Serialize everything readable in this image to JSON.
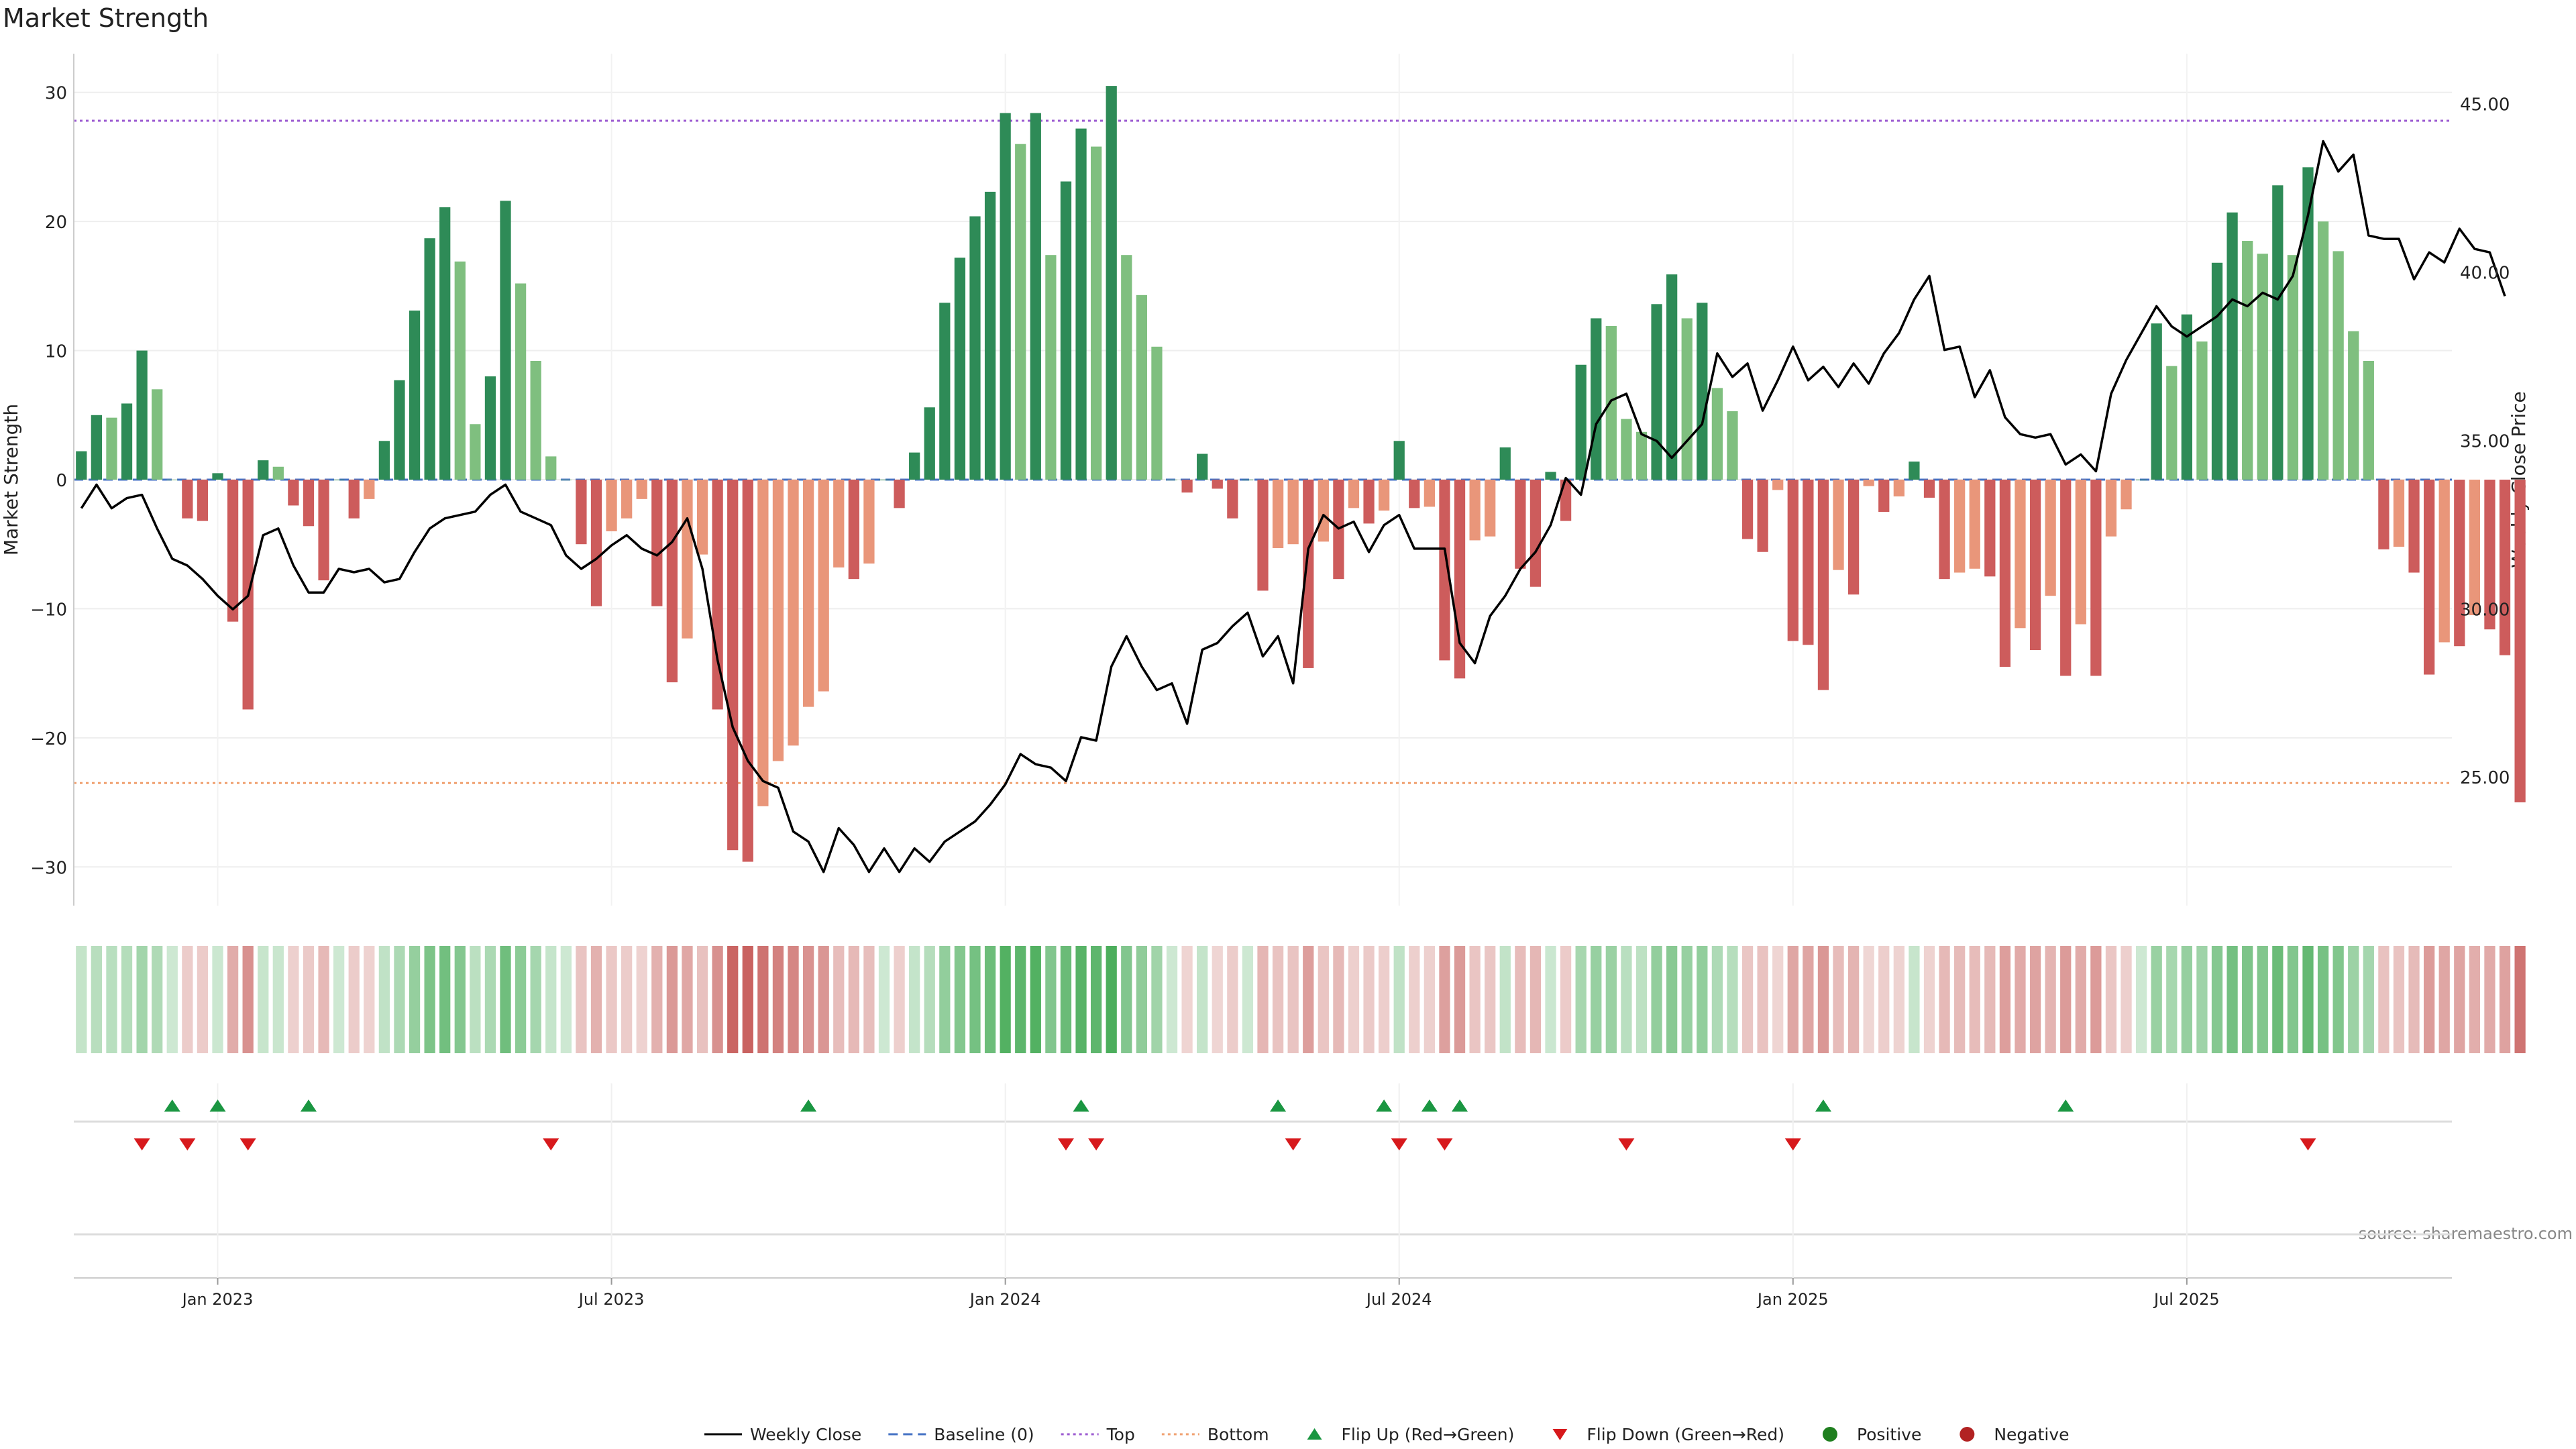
{
  "chart_data": {
    "type": "bar",
    "title": "Market Strength",
    "ylabel": "Market Strength",
    "y2label": "Weekly Close Price",
    "source": "source: sharemaestro.com",
    "ylim": [
      -33,
      33
    ],
    "y2lim": [
      21.2,
      46.5
    ],
    "yticks": [
      30,
      20,
      10,
      0,
      -10,
      -20,
      -30
    ],
    "ytick_labels": [
      "30",
      "20",
      "10",
      "0",
      "−10",
      "−20",
      "−30"
    ],
    "y2ticks": [
      45,
      40,
      35,
      30,
      25
    ],
    "y2tick_labels": [
      "45.00",
      "40.00",
      "35.00",
      "30.00",
      "25.00"
    ],
    "xticks": [
      {
        "week": 9.5,
        "label": "Jan 2023"
      },
      {
        "week": 35.5,
        "label": "Jul 2023"
      },
      {
        "week": 61.5,
        "label": "Jan 2024"
      },
      {
        "week": 87.5,
        "label": "Jul 2024"
      },
      {
        "week": 113.5,
        "label": "Jan 2025"
      },
      {
        "week": 139.5,
        "label": "Jul 2025"
      }
    ],
    "weeks": 157,
    "top_level": 27.8,
    "bottom_level": -23.5,
    "colors": {
      "strong_green": "#2e8b57",
      "light_green": "#7fbf7f",
      "strong_red": "#cd5c5c",
      "light_red": "#e9967a",
      "close_line": "#000000",
      "baseline": "#4472c4",
      "top": "#9b59d0",
      "bottom": "#f0a070",
      "flip_up": "#1a9641",
      "flip_down": "#d7191c",
      "positive": "#1f7f1f",
      "negative": "#b22222"
    },
    "strength": [
      2.2,
      5,
      4.8,
      5.9,
      10,
      7,
      0,
      -3,
      -3.2,
      0.5,
      -11,
      -17.8,
      1.5,
      1,
      -2,
      -3.6,
      -7.8,
      0,
      -3,
      -1.5,
      3,
      7.7,
      13.1,
      18.7,
      21.1,
      16.9,
      4.3,
      8,
      21.6,
      15.2,
      9.2,
      1.8,
      0,
      -5,
      -9.8,
      -4,
      -3,
      -1.5,
      -9.8,
      -15.7,
      -12.3,
      -5.8,
      -17.8,
      -28.7,
      -29.6,
      -25.3,
      -21.8,
      -20.6,
      -17.6,
      -16.4,
      -6.8,
      -7.7,
      -6.5,
      0,
      -2.2,
      2.1,
      5.6,
      13.7,
      17.2,
      20.4,
      22.3,
      28.4,
      26,
      28.4,
      17.4,
      23.1,
      27.2,
      25.8,
      30.5,
      17.4,
      14.3,
      10.3,
      0,
      -1,
      2,
      -0.7,
      -3,
      0,
      -8.6,
      -5.3,
      -5,
      -14.6,
      -4.8,
      -7.7,
      -2.2,
      -3.4,
      -2.4,
      3,
      -2.2,
      -2.1,
      -14,
      -15.4,
      -4.7,
      -4.4,
      2.5,
      -6.9,
      -8.3,
      0.6,
      -3.2,
      8.9,
      12.5,
      11.9,
      4.7,
      3.7,
      13.6,
      15.9,
      12.5,
      13.7,
      7.1,
      5.3,
      -4.6,
      -5.6,
      -0.8,
      -12.5,
      -12.8,
      -16.3,
      -7,
      -8.9,
      -0.5,
      -2.5,
      -1.3,
      1.4,
      -1.4,
      -7.7,
      -7.2,
      -6.9,
      -7.5,
      -14.5,
      -11.5,
      -13.2,
      -9,
      -15.2,
      -11.2,
      -15.2,
      -4.4,
      -2.3,
      0,
      12.1,
      8.8,
      12.8,
      10.7,
      16.8,
      20.7,
      18.5,
      17.5,
      22.8,
      17.4,
      24.2,
      20,
      17.7,
      11.5,
      9.2,
      -5.4,
      -5.2,
      -7.2,
      -15.1,
      -12.6,
      -12.9,
      -10.5,
      -11.6,
      -13.6,
      -25
    ],
    "close": [
      33,
      33.7,
      33,
      33.3,
      33.4,
      32.4,
      31.5,
      31.3,
      30.9,
      30.4,
      30,
      30.4,
      32.2,
      32.4,
      31.3,
      30.5,
      30.5,
      31.2,
      31.1,
      31.2,
      30.8,
      30.9,
      31.7,
      32.4,
      32.7,
      32.8,
      32.9,
      33.4,
      33.7,
      32.9,
      32.7,
      32.5,
      31.6,
      31.2,
      31.5,
      31.9,
      32.2,
      31.8,
      31.6,
      32,
      32.7,
      31.2,
      28.5,
      26.5,
      25.5,
      24.9,
      24.7,
      23.4,
      23.1,
      22.2,
      23.5,
      23,
      22.2,
      22.9,
      22.2,
      22.9,
      22.5,
      23.1,
      23.4,
      23.7,
      24.2,
      24.8,
      25.7,
      25.4,
      25.3,
      24.9,
      26.2,
      26.1,
      28.3,
      29.2,
      28.3,
      27.6,
      27.8,
      26.6,
      28.8,
      29,
      29.5,
      29.9,
      28.6,
      29.2,
      27.8,
      31.8,
      32.8,
      32.4,
      32.6,
      31.7,
      32.5,
      32.8,
      31.8,
      31.8,
      31.8,
      29,
      28.4,
      29.8,
      30.4,
      31.2,
      31.7,
      32.5,
      33.9,
      33.4,
      35.5,
      36.2,
      36.4,
      35.2,
      35,
      34.5,
      35,
      35.5,
      37.6,
      36.9,
      37.3,
      35.9,
      36.8,
      37.8,
      36.8,
      37.2,
      36.6,
      37.3,
      36.7,
      37.6,
      38.2,
      39.2,
      39.9,
      37.7,
      37.8,
      36.3,
      37.1,
      35.7,
      35.2,
      35.1,
      35.2,
      34.3,
      34.6,
      34.1,
      36.4,
      37.4,
      38.2,
      39,
      38.4,
      38.1,
      38.4,
      38.7,
      39.2,
      39,
      39.4,
      39.2,
      39.9,
      41.7,
      43.9,
      43,
      43.5,
      41.1,
      41,
      41,
      39.8,
      40.6,
      40.3,
      41.3,
      40.7,
      40.6,
      39.3
    ],
    "flip_up_weeks": [
      6.5,
      9.5,
      15.5,
      48.5,
      66.5,
      79.5,
      86.5,
      89.5,
      91.5,
      115.5,
      131.5
    ],
    "flip_down_weeks": [
      4.5,
      7.5,
      11.5,
      31.5,
      65.5,
      67.5,
      80.5,
      87.5,
      90.5,
      102.5,
      113.5,
      147.5
    ],
    "legend": [
      {
        "label": "Weekly Close",
        "marker": "line-solid",
        "color": "#000000"
      },
      {
        "label": "Baseline (0)",
        "marker": "line-dashed",
        "color": "#4472c4"
      },
      {
        "label": "Top",
        "marker": "line-dotted",
        "color": "#9b59d0"
      },
      {
        "label": "Bottom",
        "marker": "line-dotted",
        "color": "#f0a070"
      },
      {
        "label": "Flip Up (Red→Green)",
        "marker": "triangle-up",
        "color": "#1a9641"
      },
      {
        "label": "Flip Down (Green→Red)",
        "marker": "triangle-down",
        "color": "#d7191c"
      },
      {
        "label": "Positive",
        "marker": "circle",
        "color": "#1f7f1f"
      },
      {
        "label": "Negative",
        "marker": "circle",
        "color": "#b22222"
      }
    ]
  }
}
